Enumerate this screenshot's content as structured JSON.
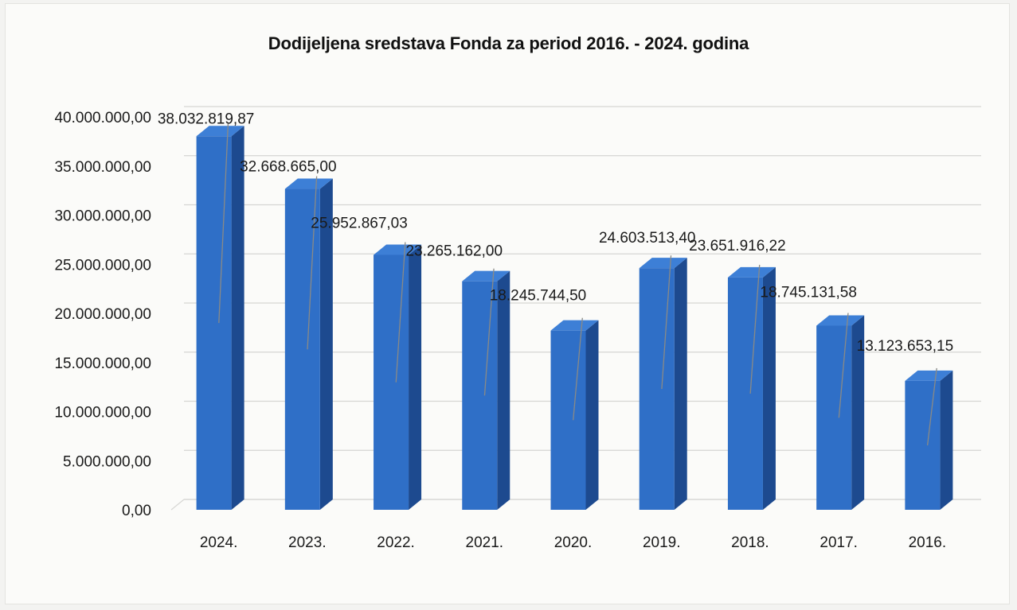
{
  "chart_data": {
    "type": "bar",
    "title": "Dodijeljena sredstava Fonda za period 2016. - 2024. godina",
    "xlabel": "",
    "ylabel": "",
    "ylim": [
      0,
      40000000
    ],
    "yticks": [
      0,
      5000000,
      10000000,
      15000000,
      20000000,
      25000000,
      30000000,
      35000000,
      40000000
    ],
    "ytick_labels": [
      "0,00",
      "5.000.000,00",
      "10.000.000,00",
      "15.000.000,00",
      "20.000.000,00",
      "25.000.000,00",
      "30.000.000,00",
      "35.000.000,00",
      "40.000.000,00"
    ],
    "categories": [
      "2024.",
      "2023.",
      "2022.",
      "2021.",
      "2020.",
      "2019.",
      "2018.",
      "2017.",
      "2016."
    ],
    "values": [
      38032819.87,
      32668665.0,
      25952867.03,
      23265162.0,
      18245744.5,
      24603513.4,
      23651916.22,
      18745131.58,
      13123653.15
    ],
    "value_labels": [
      "38.032.819,87",
      "32.668.665,00",
      "25.952.867,03",
      "23.265.162,00",
      "18.245.744,50",
      "24.603.513,40",
      "23.651.916,22",
      "18.745.131,58",
      "13.123.653,15"
    ],
    "grid": true,
    "legend": "none",
    "style": "3d-column",
    "colors": {
      "bar_front": "#2f6fc7",
      "bar_side": "#1d4a8f",
      "bar_top": "#3d7fd6",
      "grid": "#d6d6d3",
      "leader": "#8a8a86"
    }
  }
}
